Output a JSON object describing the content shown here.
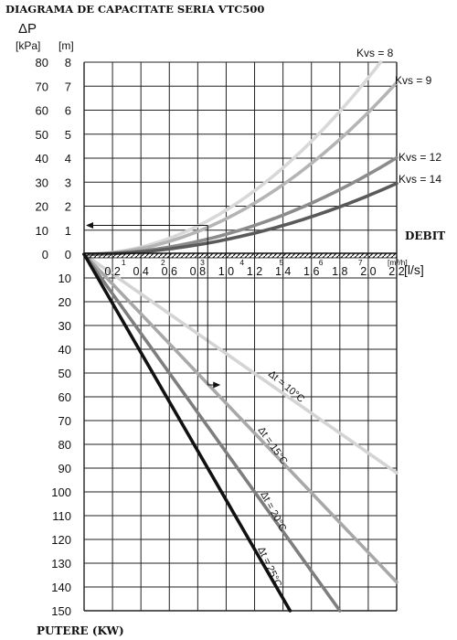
{
  "chart_data": {
    "type": "line",
    "title": "DIAGRAMA DE CAPACITATE SERIA VTC500",
    "top_axis_symbol": "ΔP",
    "left_unit_kpa": "[kPa]",
    "left_unit_m": "[m]",
    "kpa_ticks": [
      "80",
      "70",
      "60",
      "50",
      "40",
      "30",
      "20",
      "10",
      "0"
    ],
    "m_ticks": [
      "8",
      "7",
      "6",
      "5",
      "4",
      "3",
      "2",
      "1",
      "0"
    ],
    "bottom_ticks": [
      "10",
      "20",
      "30",
      "40",
      "50",
      "60",
      "70",
      "80",
      "90",
      "100",
      "110",
      "120",
      "130",
      "140",
      "150"
    ],
    "x_ticks": [
      "0,2",
      "0,4",
      "0,6",
      "0,8",
      "1,0",
      "1,2",
      "1,4",
      "1,6",
      "1,8",
      "2,0",
      "2,2"
    ],
    "x_unit": "[l/s]",
    "m3h_ticks": [
      "1",
      "2",
      "3",
      "4",
      "5",
      "6",
      "7"
    ],
    "m3h_unit": "[m³/h]",
    "x_axis_name": "DEBIT",
    "bottom_axis_name": "PUTERE (KW)",
    "xlim": [
      0,
      2.2
    ],
    "ylim_pressure_kpa": [
      0,
      80
    ],
    "ylim_power_kw": [
      0,
      150
    ],
    "pressure_series": [
      {
        "name": "Kvs = 8",
        "color": "#d8d8d8",
        "x": [
          0,
          0.5,
          1.0,
          1.5,
          2.0,
          2.2
        ],
        "y": [
          0,
          4.5,
          18.7,
          41.4,
          73.5,
          88.9
        ]
      },
      {
        "name": "Kvs = 9",
        "color": "#b4b4b4",
        "x": [
          0,
          0.5,
          1.0,
          1.5,
          2.0,
          2.2
        ],
        "y": [
          0,
          4.2,
          14.8,
          33.2,
          59.1,
          71.5
        ]
      },
      {
        "name": "Kvs = 12",
        "color": "#8c8c8c",
        "x": [
          0,
          0.5,
          1.0,
          1.5,
          2.0,
          2.2
        ],
        "y": [
          0,
          2.1,
          8.3,
          18.7,
          33.2,
          40.2
        ]
      },
      {
        "name": "Kvs = 14",
        "color": "#5a5a5a",
        "x": [
          0,
          0.5,
          1.0,
          1.5,
          2.0,
          2.2
        ],
        "y": [
          0,
          1.5,
          6.1,
          13.7,
          24.4,
          29.5
        ]
      }
    ],
    "power_series": [
      {
        "name": "Δt = 10°C",
        "color": "#d4d4d4",
        "x": [
          0,
          2.2
        ],
        "y": [
          0,
          92
        ]
      },
      {
        "name": "Δt = 15°C",
        "color": "#a8a8a8",
        "x": [
          0,
          2.2
        ],
        "y": [
          0,
          138
        ]
      },
      {
        "name": "Δt = 20°C",
        "color": "#7e7e7e",
        "x": [
          0,
          1.8
        ],
        "y": [
          0,
          150
        ]
      },
      {
        "name": "Δt = 25°C",
        "color": "#111111",
        "x": [
          0,
          1.45
        ],
        "y": [
          0,
          150
        ]
      }
    ],
    "example_reading": {
      "x": 0.87,
      "pressure_kpa": 12,
      "power_kw": 55
    },
    "grid": true
  }
}
